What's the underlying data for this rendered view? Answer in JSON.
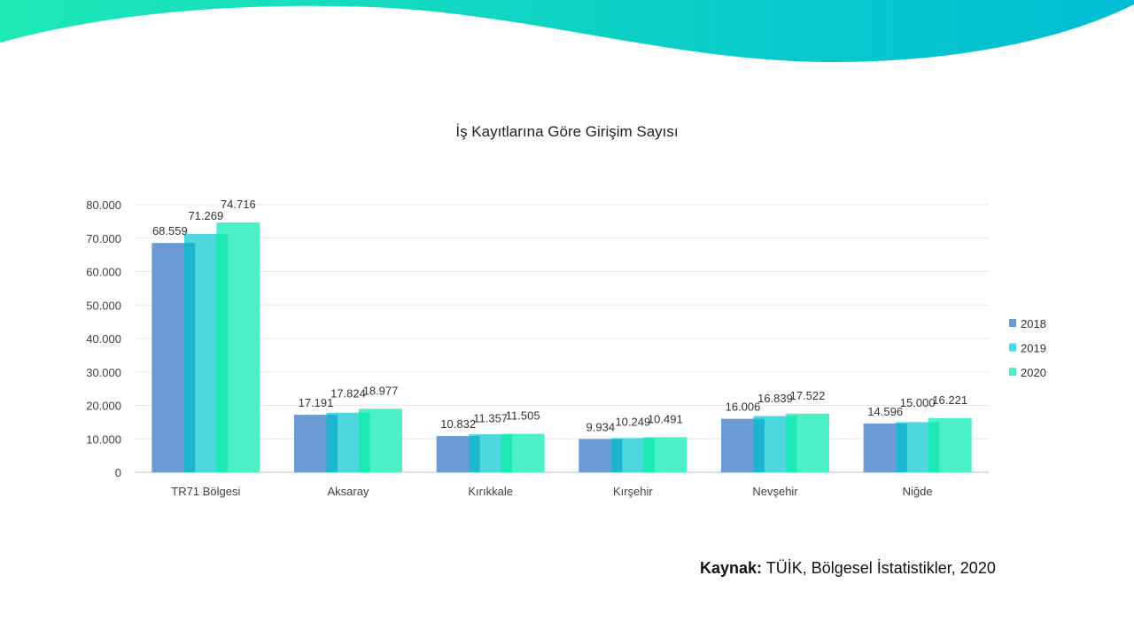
{
  "colors": {
    "wave_start": "#1de9b6",
    "wave_end": "#00bcd4",
    "series_2018": "#6b9bd2",
    "series_2019": "#4dd8e0",
    "series_2020": "#4bf0c8",
    "overlap_1": "#1cb6d0",
    "overlap_2": "#1de9b6",
    "grid": "#e6e6e6",
    "axis": "#bfbfbf"
  },
  "source": {
    "label": "Kaynak:",
    "text": "TÜİK, Bölgesel İstatistikler, 2020"
  },
  "chart_data": {
    "type": "bar",
    "title": "İş Kayıtlarına Göre Girişim Sayısı",
    "xlabel": "",
    "ylabel": "",
    "categories": [
      "TR71 Bölgesi",
      "Aksaray",
      "Kırıkkale",
      "Kırşehir",
      "Nevşehir",
      "Niğde"
    ],
    "series": [
      {
        "name": "2018",
        "values": [
          68559,
          17191,
          10832,
          9934,
          16006,
          14596
        ],
        "labels": [
          "68.559",
          "17.191",
          "10.832",
          "9.934",
          "16.006",
          "14.596"
        ]
      },
      {
        "name": "2019",
        "values": [
          71269,
          17824,
          11357,
          10249,
          16839,
          15000
        ],
        "labels": [
          "71.269",
          "17.824",
          "11.357",
          "10.249",
          "16.839",
          "15.000"
        ]
      },
      {
        "name": "2020",
        "values": [
          74716,
          18977,
          11505,
          10491,
          17522,
          16221
        ],
        "labels": [
          "74.716",
          "18.977",
          "11.505",
          "10.491",
          "17.522",
          "16.221"
        ]
      }
    ],
    "ylim": [
      0,
      80000
    ],
    "yticks": [
      "0",
      "10.000",
      "20.000",
      "30.000",
      "40.000",
      "50.000",
      "60.000",
      "70.000",
      "80.000"
    ],
    "grid": true,
    "legend_position": "right"
  }
}
